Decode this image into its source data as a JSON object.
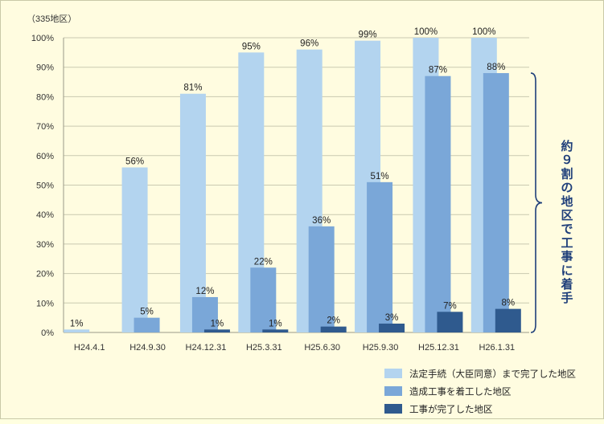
{
  "chart_data": {
    "type": "bar",
    "unit_label": "（335地区）",
    "categories": [
      "H24.4.1",
      "H24.9.30",
      "H24.12.31",
      "H25.3.31",
      "H25.6.30",
      "H25.9.30",
      "H25.12.31",
      "H26.1.31"
    ],
    "y_ticks": [
      "0%",
      "10%",
      "20%",
      "30%",
      "40%",
      "50%",
      "60%",
      "70%",
      "80%",
      "90%",
      "100%"
    ],
    "ylim": [
      0,
      100
    ],
    "grid": true,
    "legend_position": "bottom-right",
    "series": [
      {
        "name": "法定手続（大臣同意）まで完了した地区",
        "color": "#b3d4ef",
        "values": [
          1,
          56,
          81,
          95,
          96,
          99,
          100,
          100
        ],
        "labels": [
          "1%",
          "56%",
          "81%",
          "95%",
          "96%",
          "99%",
          "100%",
          "100%"
        ]
      },
      {
        "name": "造成工事を着工した地区",
        "color": "#7aa7d8",
        "values": [
          null,
          5,
          12,
          22,
          36,
          51,
          87,
          88
        ],
        "labels": [
          "",
          "5%",
          "12%",
          "22%",
          "36%",
          "51%",
          "87%",
          "88%"
        ]
      },
      {
        "name": "工事が完了した地区",
        "color": "#2f5a8e",
        "values": [
          null,
          null,
          1,
          1,
          2,
          3,
          7,
          8
        ],
        "labels": [
          "",
          "",
          "1%",
          "1%",
          "2%",
          "3%",
          "7%",
          "8%"
        ]
      }
    ],
    "annotation": "約９割の地区で工事に着手",
    "annotation_color": "#1f3f7a"
  }
}
